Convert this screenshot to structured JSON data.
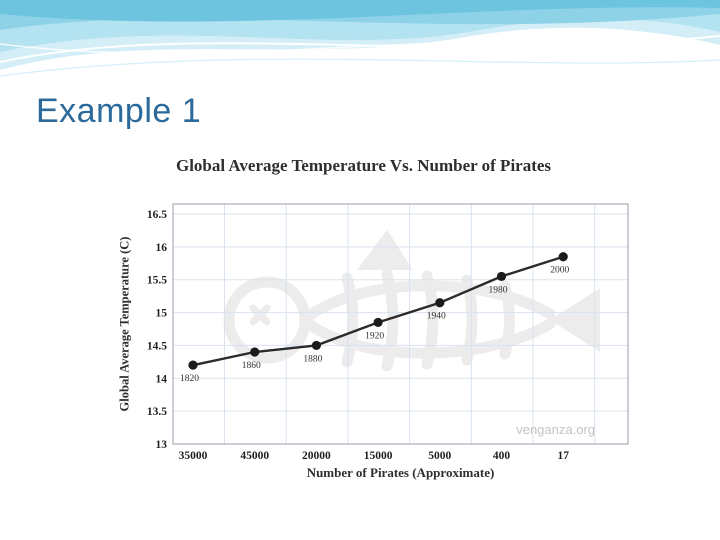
{
  "slide": {
    "title": "Example 1"
  },
  "theme": {
    "title_color": "#2b6a9b",
    "wave_blues": [
      "#6cc4de",
      "#8ed2e8",
      "#b3e2f0",
      "#d4eef7"
    ]
  },
  "chart_data": {
    "type": "line",
    "title": "Global Average Temperature Vs. Number of Pirates",
    "xlabel": "Number of Pirates (Approximate)",
    "ylabel": "Global Average Temperature (C)",
    "categories": [
      "35000",
      "45000",
      "20000",
      "15000",
      "5000",
      "400",
      "17"
    ],
    "point_labels": [
      "1820",
      "1860",
      "1880",
      "1920",
      "1940",
      "1980",
      "2000"
    ],
    "values": [
      14.2,
      14.4,
      14.5,
      14.85,
      15.15,
      15.55,
      15.85
    ],
    "ylim": [
      13,
      16.5
    ],
    "y_ticks": [
      "16.5",
      "16",
      "15.5",
      "15",
      "14.5",
      "14",
      "13.5",
      "13"
    ],
    "grid": true,
    "legend": "none",
    "grid_color": "#d8e3ee",
    "line_color": "#2b2b2b",
    "marker_color": "#1b1b1b",
    "watermark": "venganza.org"
  }
}
